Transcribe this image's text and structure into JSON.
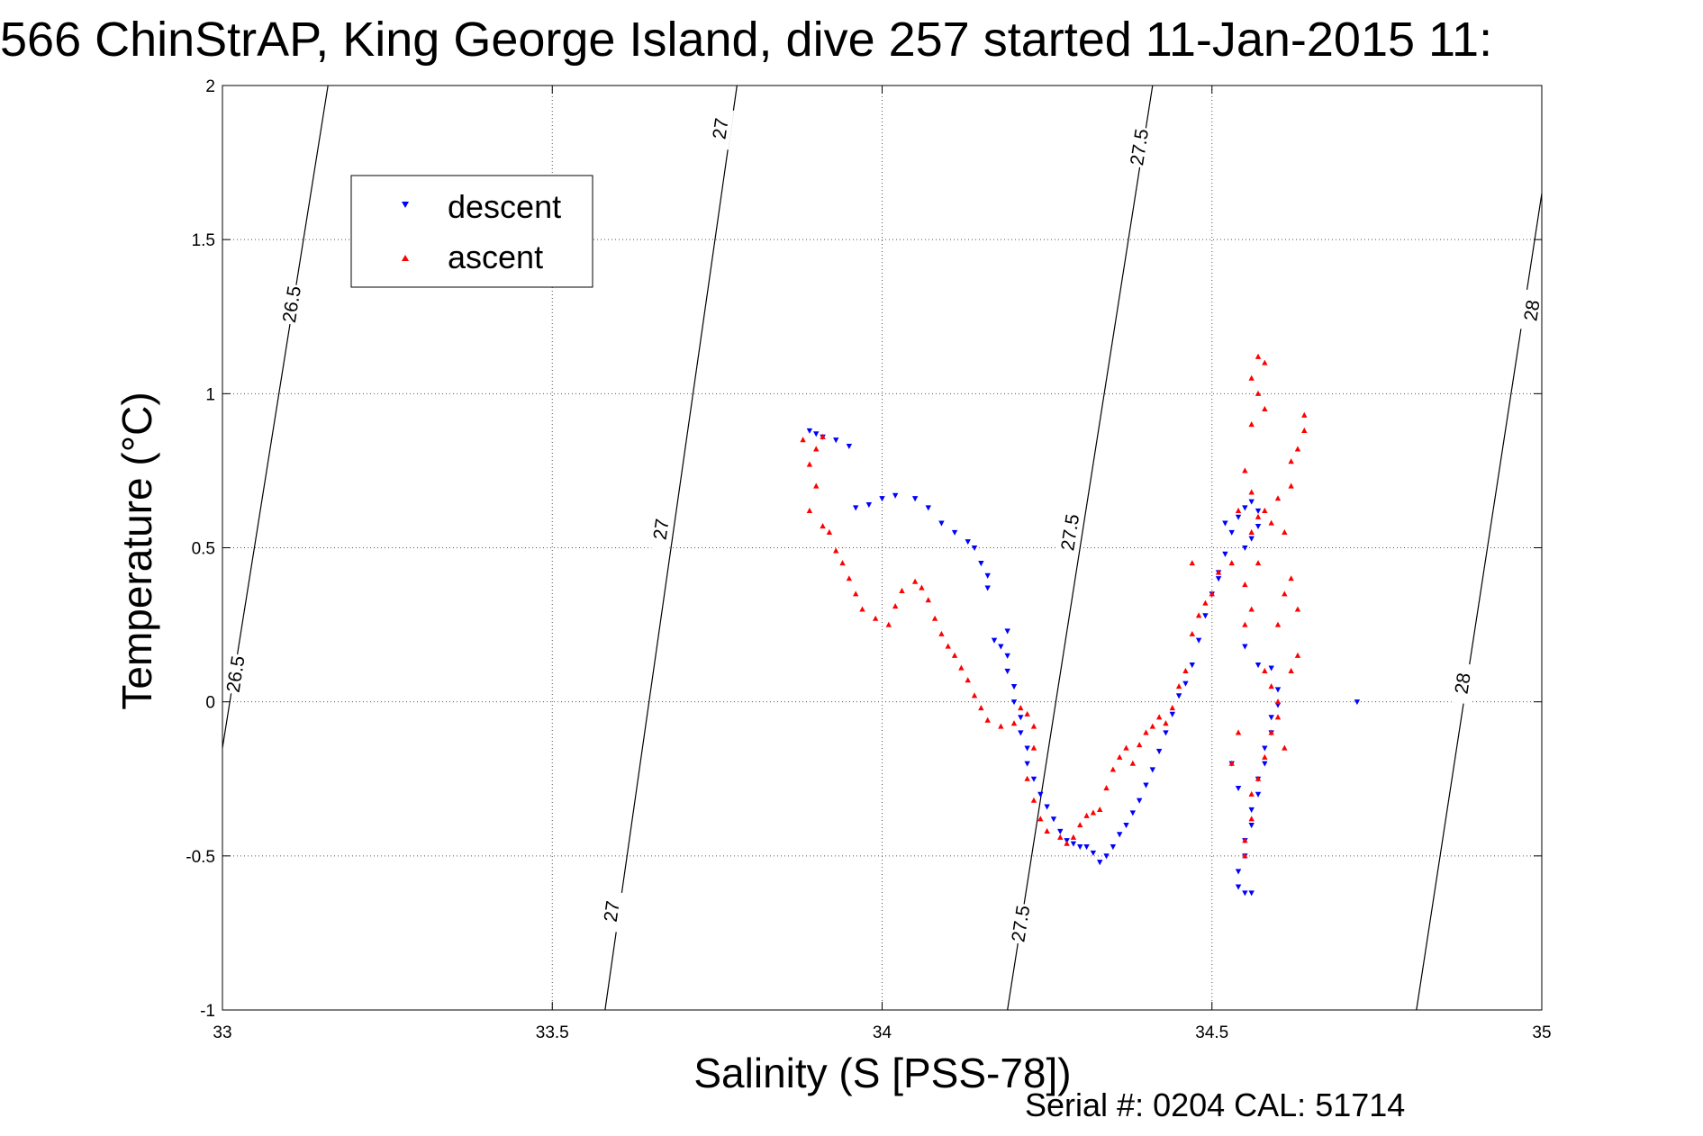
{
  "figure": {
    "title": "566 ChinStrAP, King George Island, dive 257 started 11-Jan-2015 11:",
    "footer": "Serial #: 0204  CAL: 51714"
  },
  "chart_data": {
    "type": "scatter",
    "title": "566 ChinStrAP, King George Island, dive 257 started 11-Jan-2015 11:",
    "xlabel": "Salinity (S [PSS-78])",
    "ylabel": "Temperature (°C)",
    "xlim": [
      33,
      35
    ],
    "ylim": [
      -1,
      2
    ],
    "xticks": [
      33,
      33.5,
      34,
      34.5,
      35
    ],
    "yticks": [
      -1,
      -0.5,
      0,
      0.5,
      1,
      1.5,
      2
    ],
    "xtick_labels": [
      "33",
      "33.5",
      "34",
      "34.5",
      "35"
    ],
    "ytick_labels": [
      "-1",
      "-0.5",
      "0",
      "0.5",
      "1",
      "1.5",
      "2"
    ],
    "grid": true,
    "legend_position": "top-left",
    "density_contours": [
      {
        "label": "26.5",
        "points": [
          [
            33.0,
            -0.15
          ],
          [
            33.16,
            2.0
          ]
        ],
        "label_at": [
          [
            33.105,
            1.29
          ],
          [
            33.02,
            0.09
          ]
        ]
      },
      {
        "label": "27",
        "points": [
          [
            33.58,
            -1.0
          ],
          [
            33.78,
            2.0
          ]
        ],
        "label_at": [
          [
            33.755,
            1.86
          ],
          [
            33.665,
            0.56
          ],
          [
            33.59,
            -0.68
          ]
        ]
      },
      {
        "label": "27.5",
        "points": [
          [
            34.19,
            -1.0
          ],
          [
            34.41,
            2.0
          ]
        ],
        "label_at": [
          [
            34.39,
            1.8
          ],
          [
            34.285,
            0.55
          ],
          [
            34.21,
            -0.72
          ]
        ]
      },
      {
        "label": "28",
        "points": [
          [
            34.81,
            -1.0
          ],
          [
            35.0,
            1.65
          ]
        ],
        "label_at": [
          [
            34.985,
            1.27
          ],
          [
            34.88,
            0.06
          ]
        ]
      }
    ],
    "series": [
      {
        "name": "descent",
        "color": "#0000ff",
        "marker": "triangle-down",
        "points": [
          [
            33.89,
            0.88
          ],
          [
            33.9,
            0.87
          ],
          [
            33.91,
            0.86
          ],
          [
            33.93,
            0.85
          ],
          [
            33.95,
            0.83
          ],
          [
            33.96,
            0.63
          ],
          [
            33.98,
            0.64
          ],
          [
            34.0,
            0.66
          ],
          [
            34.02,
            0.67
          ],
          [
            34.05,
            0.66
          ],
          [
            34.07,
            0.63
          ],
          [
            34.09,
            0.58
          ],
          [
            34.11,
            0.55
          ],
          [
            34.13,
            0.52
          ],
          [
            34.14,
            0.5
          ],
          [
            34.15,
            0.45
          ],
          [
            34.16,
            0.41
          ],
          [
            34.16,
            0.37
          ],
          [
            34.17,
            0.2
          ],
          [
            34.18,
            0.18
          ],
          [
            34.19,
            0.23
          ],
          [
            34.19,
            0.15
          ],
          [
            34.19,
            0.1
          ],
          [
            34.2,
            0.05
          ],
          [
            34.2,
            0.0
          ],
          [
            34.21,
            -0.05
          ],
          [
            34.21,
            -0.1
          ],
          [
            34.22,
            -0.15
          ],
          [
            34.22,
            -0.2
          ],
          [
            34.23,
            -0.25
          ],
          [
            34.24,
            -0.3
          ],
          [
            34.25,
            -0.34
          ],
          [
            34.26,
            -0.38
          ],
          [
            34.27,
            -0.42
          ],
          [
            34.28,
            -0.45
          ],
          [
            34.29,
            -0.46
          ],
          [
            34.3,
            -0.47
          ],
          [
            34.31,
            -0.47
          ],
          [
            34.32,
            -0.49
          ],
          [
            34.33,
            -0.52
          ],
          [
            34.34,
            -0.5
          ],
          [
            34.35,
            -0.47
          ],
          [
            34.36,
            -0.43
          ],
          [
            34.37,
            -0.4
          ],
          [
            34.38,
            -0.36
          ],
          [
            34.39,
            -0.32
          ],
          [
            34.4,
            -0.27
          ],
          [
            34.41,
            -0.22
          ],
          [
            34.42,
            -0.16
          ],
          [
            34.43,
            -0.1
          ],
          [
            34.44,
            -0.04
          ],
          [
            34.45,
            0.02
          ],
          [
            34.46,
            0.06
          ],
          [
            34.47,
            0.12
          ],
          [
            34.48,
            0.2
          ],
          [
            34.49,
            0.28
          ],
          [
            34.5,
            0.35
          ],
          [
            34.51,
            0.42
          ],
          [
            34.52,
            0.48
          ],
          [
            34.53,
            0.55
          ],
          [
            34.54,
            0.6
          ],
          [
            34.55,
            0.63
          ],
          [
            34.56,
            0.65
          ],
          [
            34.57,
            0.62
          ],
          [
            34.57,
            0.57
          ],
          [
            34.56,
            0.53
          ],
          [
            34.55,
            0.5
          ],
          [
            34.52,
            0.58
          ],
          [
            34.51,
            0.4
          ],
          [
            34.55,
            0.18
          ],
          [
            34.57,
            0.12
          ],
          [
            34.59,
            0.11
          ],
          [
            34.6,
            0.04
          ],
          [
            34.6,
            -0.01
          ],
          [
            34.59,
            -0.05
          ],
          [
            34.59,
            -0.1
          ],
          [
            34.58,
            -0.15
          ],
          [
            34.58,
            -0.2
          ],
          [
            34.57,
            -0.25
          ],
          [
            34.57,
            -0.3
          ],
          [
            34.56,
            -0.35
          ],
          [
            34.56,
            -0.4
          ],
          [
            34.55,
            -0.45
          ],
          [
            34.55,
            -0.5
          ],
          [
            34.54,
            -0.55
          ],
          [
            34.54,
            -0.6
          ],
          [
            34.55,
            -0.62
          ],
          [
            34.56,
            -0.62
          ],
          [
            34.53,
            -0.2
          ],
          [
            34.54,
            -0.28
          ],
          [
            34.72,
            0.0
          ]
        ]
      },
      {
        "name": "ascent",
        "color": "#ff0000",
        "marker": "triangle-up",
        "points": [
          [
            33.88,
            0.85
          ],
          [
            33.9,
            0.82
          ],
          [
            33.91,
            0.86
          ],
          [
            33.89,
            0.77
          ],
          [
            33.9,
            0.7
          ],
          [
            33.89,
            0.62
          ],
          [
            33.91,
            0.57
          ],
          [
            33.92,
            0.55
          ],
          [
            33.93,
            0.49
          ],
          [
            33.94,
            0.45
          ],
          [
            33.95,
            0.4
          ],
          [
            33.96,
            0.35
          ],
          [
            33.97,
            0.3
          ],
          [
            33.99,
            0.27
          ],
          [
            34.01,
            0.25
          ],
          [
            34.02,
            0.31
          ],
          [
            34.03,
            0.36
          ],
          [
            34.05,
            0.39
          ],
          [
            34.06,
            0.37
          ],
          [
            34.07,
            0.33
          ],
          [
            34.08,
            0.27
          ],
          [
            34.09,
            0.22
          ],
          [
            34.1,
            0.18
          ],
          [
            34.11,
            0.15
          ],
          [
            34.12,
            0.11
          ],
          [
            34.13,
            0.07
          ],
          [
            34.14,
            0.02
          ],
          [
            34.15,
            -0.02
          ],
          [
            34.16,
            -0.06
          ],
          [
            34.18,
            -0.08
          ],
          [
            34.2,
            -0.07
          ],
          [
            34.21,
            -0.02
          ],
          [
            34.22,
            -0.04
          ],
          [
            34.23,
            -0.08
          ],
          [
            34.23,
            -0.15
          ],
          [
            34.22,
            -0.25
          ],
          [
            34.23,
            -0.32
          ],
          [
            34.24,
            -0.38
          ],
          [
            34.25,
            -0.42
          ],
          [
            34.27,
            -0.44
          ],
          [
            34.28,
            -0.46
          ],
          [
            34.29,
            -0.44
          ],
          [
            34.3,
            -0.4
          ],
          [
            34.31,
            -0.37
          ],
          [
            34.32,
            -0.36
          ],
          [
            34.33,
            -0.35
          ],
          [
            34.34,
            -0.28
          ],
          [
            34.35,
            -0.22
          ],
          [
            34.36,
            -0.18
          ],
          [
            34.37,
            -0.15
          ],
          [
            34.38,
            -0.2
          ],
          [
            34.39,
            -0.14
          ],
          [
            34.4,
            -0.1
          ],
          [
            34.41,
            -0.08
          ],
          [
            34.42,
            -0.05
          ],
          [
            34.43,
            -0.07
          ],
          [
            34.44,
            -0.02
          ],
          [
            34.45,
            0.05
          ],
          [
            34.46,
            0.1
          ],
          [
            34.47,
            0.22
          ],
          [
            34.48,
            0.28
          ],
          [
            34.49,
            0.32
          ],
          [
            34.5,
            0.35
          ],
          [
            34.51,
            0.42
          ],
          [
            34.47,
            0.45
          ],
          [
            34.53,
            0.45
          ],
          [
            34.55,
            0.38
          ],
          [
            34.56,
            0.55
          ],
          [
            34.57,
            0.6
          ],
          [
            34.58,
            0.62
          ],
          [
            34.59,
            0.58
          ],
          [
            34.6,
            0.66
          ],
          [
            34.61,
            0.55
          ],
          [
            34.62,
            0.4
          ],
          [
            34.63,
            0.3
          ],
          [
            34.62,
            0.7
          ],
          [
            34.63,
            0.82
          ],
          [
            34.64,
            0.88
          ],
          [
            34.64,
            0.93
          ],
          [
            34.62,
            0.78
          ],
          [
            34.56,
            0.9
          ],
          [
            34.57,
            1.0
          ],
          [
            34.58,
            0.95
          ],
          [
            34.57,
            1.12
          ],
          [
            34.58,
            1.1
          ],
          [
            34.56,
            1.05
          ],
          [
            34.55,
            0.75
          ],
          [
            34.56,
            0.68
          ],
          [
            34.54,
            0.62
          ],
          [
            34.57,
            0.45
          ],
          [
            34.58,
            0.1
          ],
          [
            34.59,
            0.05
          ],
          [
            34.6,
            0.0
          ],
          [
            34.6,
            -0.05
          ],
          [
            34.59,
            -0.1
          ],
          [
            34.58,
            -0.18
          ],
          [
            34.57,
            -0.25
          ],
          [
            34.56,
            -0.3
          ],
          [
            34.56,
            -0.38
          ],
          [
            34.55,
            -0.45
          ],
          [
            34.55,
            -0.5
          ],
          [
            34.54,
            -0.1
          ],
          [
            34.53,
            -0.2
          ],
          [
            34.62,
            0.1
          ],
          [
            34.61,
            -0.15
          ],
          [
            34.6,
            0.25
          ],
          [
            34.61,
            0.35
          ],
          [
            34.63,
            0.15
          ],
          [
            34.55,
            0.25
          ],
          [
            34.56,
            0.3
          ]
        ]
      }
    ]
  }
}
